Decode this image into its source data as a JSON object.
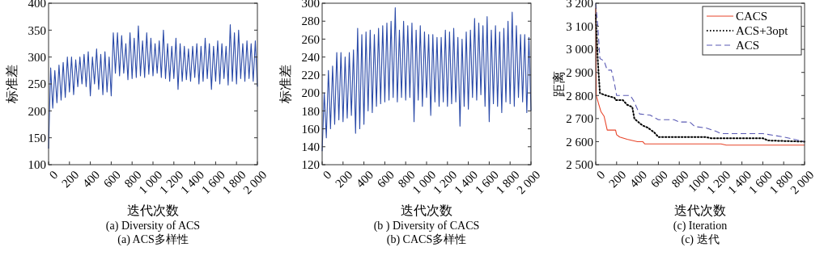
{
  "chart_data": [
    {
      "type": "line",
      "title": "(a) Diversity of ACS",
      "subtitle": "(a) ACS多样性",
      "xlabel": "迭代次数",
      "ylabel": "标准差",
      "xlim": [
        0,
        2000
      ],
      "ylim": [
        100,
        400
      ],
      "xticks": [
        0,
        200,
        400,
        600,
        800,
        {
          "value": 1000,
          "label": "1 000"
        },
        {
          "value": 1200,
          "label": "1 200"
        },
        {
          "value": 1400,
          "label": "1 400"
        },
        {
          "value": 1600,
          "label": "1 600"
        },
        {
          "value": 1800,
          "label": "1 800"
        },
        {
          "value": 2000,
          "label": "2 000"
        }
      ],
      "yticks": [
        100,
        150,
        200,
        250,
        300,
        350,
        400
      ],
      "series": [
        {
          "color": "#2a4aa8",
          "x": [
            0,
            20,
            40,
            60,
            80,
            100,
            120,
            140,
            160,
            180,
            200,
            220,
            240,
            260,
            280,
            300,
            320,
            340,
            360,
            380,
            400,
            420,
            440,
            460,
            480,
            500,
            520,
            540,
            560,
            580,
            600,
            620,
            640,
            660,
            680,
            700,
            720,
            740,
            760,
            780,
            800,
            820,
            840,
            860,
            880,
            900,
            920,
            940,
            960,
            980,
            1000,
            1020,
            1040,
            1060,
            1080,
            1100,
            1120,
            1140,
            1160,
            1180,
            1200,
            1220,
            1240,
            1260,
            1280,
            1300,
            1320,
            1340,
            1360,
            1380,
            1400,
            1420,
            1440,
            1460,
            1480,
            1500,
            1520,
            1540,
            1560,
            1580,
            1600,
            1620,
            1640,
            1660,
            1680,
            1700,
            1720,
            1740,
            1760,
            1780,
            1800,
            1820,
            1840,
            1860,
            1880,
            1900,
            1920,
            1940,
            1960,
            1980,
            2000
          ],
          "values": [
            130,
            280,
            205,
            275,
            215,
            285,
            220,
            290,
            225,
            300,
            235,
            300,
            230,
            295,
            245,
            300,
            250,
            305,
            245,
            310,
            228,
            300,
            250,
            315,
            240,
            305,
            230,
            310,
            235,
            300,
            228,
            345,
            270,
            345,
            265,
            340,
            270,
            325,
            258,
            345,
            260,
            335,
            262,
            358,
            265,
            330,
            262,
            345,
            268,
            335,
            265,
            325,
            270,
            330,
            262,
            350,
            260,
            325,
            255,
            320,
            260,
            335,
            240,
            325,
            255,
            320,
            258,
            315,
            255,
            320,
            262,
            325,
            250,
            320,
            255,
            335,
            260,
            325,
            240,
            320,
            255,
            330,
            250,
            325,
            260,
            320,
            248,
            360,
            255,
            345,
            250,
            350,
            260,
            325,
            255,
            330,
            260,
            325,
            255,
            330,
            245
          ]
        }
      ]
    },
    {
      "type": "line",
      "title": "(b ) Diversity of CACS",
      "subtitle": "(b) CACS多样性",
      "xlabel": "迭代次数",
      "ylabel": "标准差",
      "xlim": [
        0,
        2000
      ],
      "ylim": [
        120,
        300
      ],
      "xticks": [
        0,
        200,
        400,
        600,
        800,
        {
          "value": 1000,
          "label": "1 000"
        },
        {
          "value": 1200,
          "label": "1 200"
        },
        {
          "value": 1400,
          "label": "1 400"
        },
        {
          "value": 1600,
          "label": "1 600"
        },
        {
          "value": 1800,
          "label": "1 800"
        },
        {
          "value": 2000,
          "label": "2 000"
        }
      ],
      "yticks": [
        120,
        140,
        160,
        180,
        200,
        220,
        240,
        260,
        280,
        300
      ],
      "series": [
        {
          "color": "#2a4aa8",
          "x": [
            0,
            20,
            40,
            60,
            80,
            100,
            120,
            140,
            160,
            180,
            200,
            220,
            240,
            260,
            280,
            300,
            320,
            340,
            360,
            380,
            400,
            420,
            440,
            460,
            480,
            500,
            520,
            540,
            560,
            580,
            600,
            620,
            640,
            660,
            680,
            700,
            720,
            740,
            760,
            780,
            800,
            820,
            840,
            860,
            880,
            900,
            920,
            940,
            960,
            980,
            1000,
            1020,
            1040,
            1060,
            1080,
            1100,
            1120,
            1140,
            1160,
            1180,
            1200,
            1220,
            1240,
            1260,
            1280,
            1300,
            1320,
            1340,
            1360,
            1380,
            1400,
            1420,
            1440,
            1460,
            1480,
            1500,
            1520,
            1540,
            1560,
            1580,
            1600,
            1620,
            1640,
            1660,
            1680,
            1700,
            1720,
            1740,
            1760,
            1780,
            1800,
            1820,
            1840,
            1860,
            1880,
            1900,
            1920,
            1940,
            1960,
            1980,
            2000
          ],
          "values": [
            135,
            200,
            150,
            225,
            160,
            230,
            165,
            245,
            170,
            245,
            168,
            240,
            172,
            245,
            175,
            248,
            155,
            272,
            160,
            265,
            165,
            268,
            180,
            270,
            178,
            265,
            185,
            272,
            188,
            275,
            190,
            278,
            192,
            280,
            195,
            295,
            190,
            270,
            195,
            280,
            192,
            275,
            195,
            278,
            168,
            270,
            192,
            275,
            185,
            268,
            195,
            265,
            175,
            265,
            190,
            262,
            185,
            262,
            190,
            270,
            185,
            268,
            188,
            272,
            190,
            262,
            163,
            260,
            185,
            268,
            182,
            270,
            195,
            283,
            192,
            278,
            198,
            275,
            185,
            285,
            168,
            270,
            188,
            275,
            185,
            268,
            178,
            272,
            190,
            280,
            188,
            290,
            185,
            275,
            195,
            265,
            190,
            265,
            178,
            262,
            180
          ]
        }
      ]
    },
    {
      "type": "line",
      "title": "(c) Iteration",
      "subtitle": "(c) 迭代",
      "xlabel": "迭代次数",
      "ylabel": "距离",
      "xlim": [
        0,
        2000
      ],
      "ylim": [
        2500,
        3200
      ],
      "legend": "top right",
      "xticks": [
        0,
        200,
        400,
        600,
        800,
        1000,
        {
          "value": 1200,
          "label": "1 200"
        },
        {
          "value": 1400,
          "label": "1 400"
        },
        {
          "value": 1600,
          "label": "1 600"
        },
        {
          "value": 1800,
          "label": "1 800"
        },
        {
          "value": 2000,
          "label": "2 000"
        }
      ],
      "yticks": [
        {
          "value": 2500,
          "label": "2 500"
        },
        {
          "value": 2600,
          "label": "2 600"
        },
        {
          "value": 2700,
          "label": "2 700"
        },
        {
          "value": 2800,
          "label": "2 800"
        },
        {
          "value": 2900,
          "label": "2 900"
        },
        {
          "value": 3000,
          "label": "3 000"
        },
        {
          "value": 3100,
          "label": "3 100"
        },
        {
          "value": 3200,
          "label": "3 200"
        }
      ],
      "series": [
        {
          "name": "CACS",
          "color": "#e8452a",
          "line_style": "solid",
          "x": [
            0,
            5,
            30,
            50,
            80,
            100,
            110,
            190,
            200,
            230,
            300,
            350,
            400,
            450,
            470,
            1200,
            1250,
            2000
          ],
          "values": [
            3180,
            2800,
            2760,
            2730,
            2710,
            2670,
            2650,
            2650,
            2630,
            2620,
            2610,
            2605,
            2600,
            2600,
            2590,
            2590,
            2585,
            2585
          ]
        },
        {
          "name": "ACS+3opt",
          "color": "#000000",
          "line_style": "dotted",
          "x": [
            0,
            20,
            40,
            100,
            180,
            190,
            260,
            300,
            350,
            370,
            420,
            450,
            500,
            560,
            600,
            1050,
            1100,
            1600,
            1650,
            2000
          ],
          "values": [
            3150,
            2950,
            2810,
            2800,
            2790,
            2780,
            2780,
            2760,
            2750,
            2700,
            2680,
            2670,
            2660,
            2640,
            2620,
            2620,
            2615,
            2615,
            2605,
            2600
          ]
        },
        {
          "name": "ACS",
          "color": "#5a5ab4",
          "line_style": "dashed",
          "x": [
            0,
            20,
            40,
            80,
            110,
            150,
            180,
            200,
            330,
            360,
            420,
            520,
            600,
            750,
            800,
            900,
            950,
            1050,
            1150,
            1200,
            1600,
            1800,
            1900,
            2000
          ],
          "values": [
            3200,
            3100,
            2960,
            2950,
            2910,
            2910,
            2850,
            2800,
            2800,
            2780,
            2720,
            2715,
            2695,
            2695,
            2685,
            2685,
            2665,
            2660,
            2645,
            2635,
            2635,
            2620,
            2610,
            2600
          ]
        }
      ]
    }
  ]
}
